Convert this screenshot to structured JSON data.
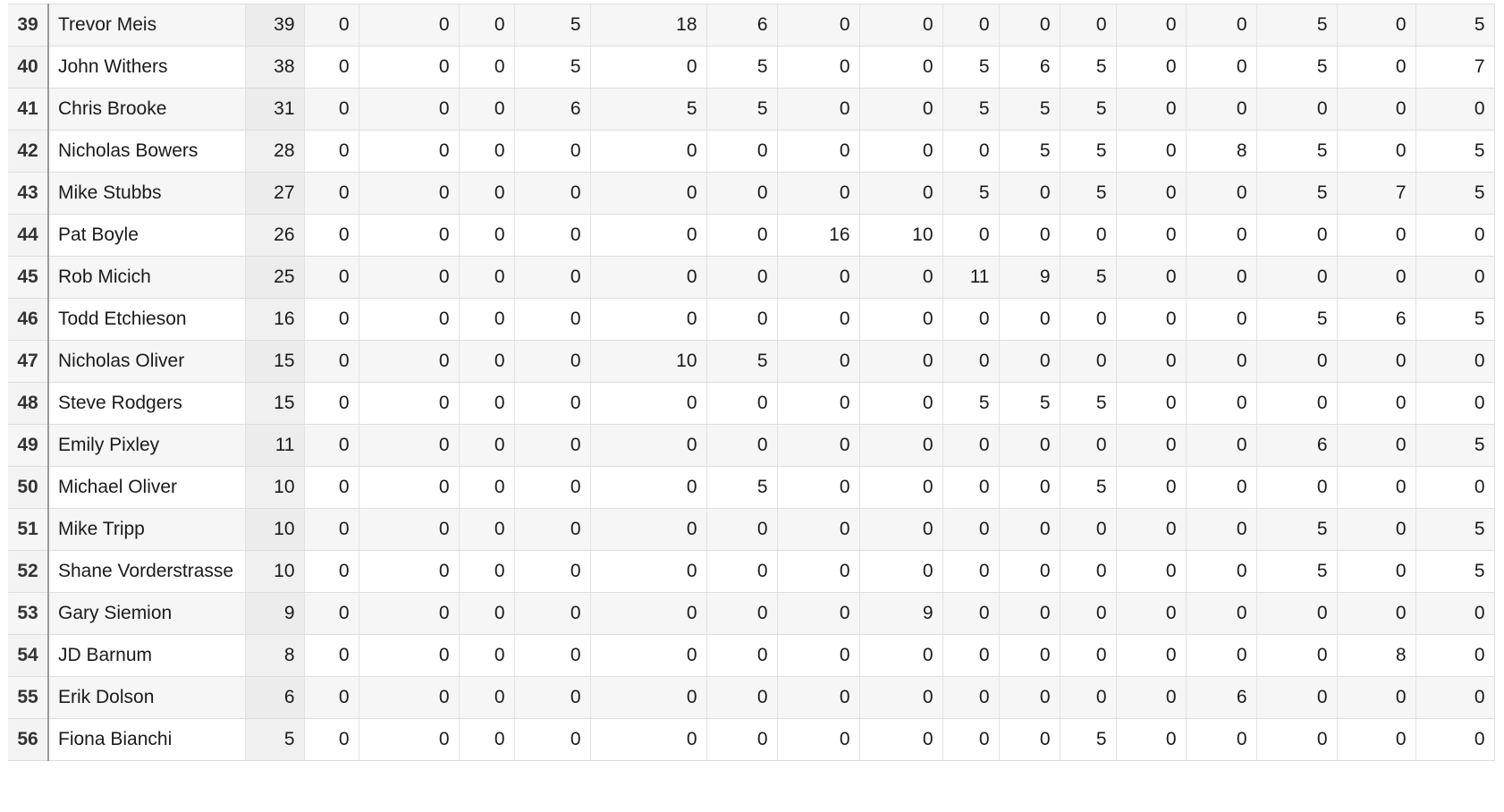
{
  "rows": [
    {
      "num": "39",
      "name": "Trevor Meis",
      "total": "39",
      "values": [
        "0",
        "0",
        "0",
        "5",
        "18",
        "6",
        "0",
        "0",
        "0",
        "0",
        "0",
        "0",
        "0",
        "5",
        "0",
        "5"
      ]
    },
    {
      "num": "40",
      "name": "John Withers",
      "total": "38",
      "values": [
        "0",
        "0",
        "0",
        "5",
        "0",
        "5",
        "0",
        "0",
        "5",
        "6",
        "5",
        "0",
        "0",
        "5",
        "0",
        "7"
      ]
    },
    {
      "num": "41",
      "name": "Chris Brooke",
      "total": "31",
      "values": [
        "0",
        "0",
        "0",
        "6",
        "5",
        "5",
        "0",
        "0",
        "5",
        "5",
        "5",
        "0",
        "0",
        "0",
        "0",
        "0"
      ]
    },
    {
      "num": "42",
      "name": "Nicholas Bowers",
      "total": "28",
      "values": [
        "0",
        "0",
        "0",
        "0",
        "0",
        "0",
        "0",
        "0",
        "0",
        "5",
        "5",
        "0",
        "8",
        "5",
        "0",
        "5"
      ]
    },
    {
      "num": "43",
      "name": "Mike Stubbs",
      "total": "27",
      "values": [
        "0",
        "0",
        "0",
        "0",
        "0",
        "0",
        "0",
        "0",
        "5",
        "0",
        "5",
        "0",
        "0",
        "5",
        "7",
        "5"
      ]
    },
    {
      "num": "44",
      "name": "Pat Boyle",
      "total": "26",
      "values": [
        "0",
        "0",
        "0",
        "0",
        "0",
        "0",
        "16",
        "10",
        "0",
        "0",
        "0",
        "0",
        "0",
        "0",
        "0",
        "0"
      ]
    },
    {
      "num": "45",
      "name": "Rob Micich",
      "total": "25",
      "values": [
        "0",
        "0",
        "0",
        "0",
        "0",
        "0",
        "0",
        "0",
        "11",
        "9",
        "5",
        "0",
        "0",
        "0",
        "0",
        "0"
      ]
    },
    {
      "num": "46",
      "name": "Todd Etchieson",
      "total": "16",
      "values": [
        "0",
        "0",
        "0",
        "0",
        "0",
        "0",
        "0",
        "0",
        "0",
        "0",
        "0",
        "0",
        "0",
        "5",
        "6",
        "5"
      ]
    },
    {
      "num": "47",
      "name": "Nicholas Oliver",
      "total": "15",
      "values": [
        "0",
        "0",
        "0",
        "0",
        "10",
        "5",
        "0",
        "0",
        "0",
        "0",
        "0",
        "0",
        "0",
        "0",
        "0",
        "0"
      ]
    },
    {
      "num": "48",
      "name": "Steve Rodgers",
      "total": "15",
      "values": [
        "0",
        "0",
        "0",
        "0",
        "0",
        "0",
        "0",
        "0",
        "5",
        "5",
        "5",
        "0",
        "0",
        "0",
        "0",
        "0"
      ]
    },
    {
      "num": "49",
      "name": "Emily Pixley",
      "total": "11",
      "values": [
        "0",
        "0",
        "0",
        "0",
        "0",
        "0",
        "0",
        "0",
        "0",
        "0",
        "0",
        "0",
        "0",
        "6",
        "0",
        "5"
      ]
    },
    {
      "num": "50",
      "name": "Michael Oliver",
      "total": "10",
      "values": [
        "0",
        "0",
        "0",
        "0",
        "0",
        "5",
        "0",
        "0",
        "0",
        "0",
        "5",
        "0",
        "0",
        "0",
        "0",
        "0"
      ]
    },
    {
      "num": "51",
      "name": "Mike Tripp",
      "total": "10",
      "values": [
        "0",
        "0",
        "0",
        "0",
        "0",
        "0",
        "0",
        "0",
        "0",
        "0",
        "0",
        "0",
        "0",
        "5",
        "0",
        "5"
      ]
    },
    {
      "num": "52",
      "name": "Shane Vorderstrasse",
      "total": "10",
      "values": [
        "0",
        "0",
        "0",
        "0",
        "0",
        "0",
        "0",
        "0",
        "0",
        "0",
        "0",
        "0",
        "0",
        "5",
        "0",
        "5"
      ]
    },
    {
      "num": "53",
      "name": "Gary Siemion",
      "total": "9",
      "values": [
        "0",
        "0",
        "0",
        "0",
        "0",
        "0",
        "0",
        "9",
        "0",
        "0",
        "0",
        "0",
        "0",
        "0",
        "0",
        "0"
      ]
    },
    {
      "num": "54",
      "name": "JD Barnum",
      "total": "8",
      "values": [
        "0",
        "0",
        "0",
        "0",
        "0",
        "0",
        "0",
        "0",
        "0",
        "0",
        "0",
        "0",
        "0",
        "0",
        "8",
        "0"
      ]
    },
    {
      "num": "55",
      "name": "Erik Dolson",
      "total": "6",
      "values": [
        "0",
        "0",
        "0",
        "0",
        "0",
        "0",
        "0",
        "0",
        "0",
        "0",
        "0",
        "0",
        "6",
        "0",
        "0",
        "0"
      ]
    },
    {
      "num": "56",
      "name": "Fiona Bianchi",
      "total": "5",
      "values": [
        "0",
        "0",
        "0",
        "0",
        "0",
        "0",
        "0",
        "0",
        "0",
        "0",
        "5",
        "0",
        "0",
        "0",
        "0",
        "0"
      ]
    }
  ]
}
